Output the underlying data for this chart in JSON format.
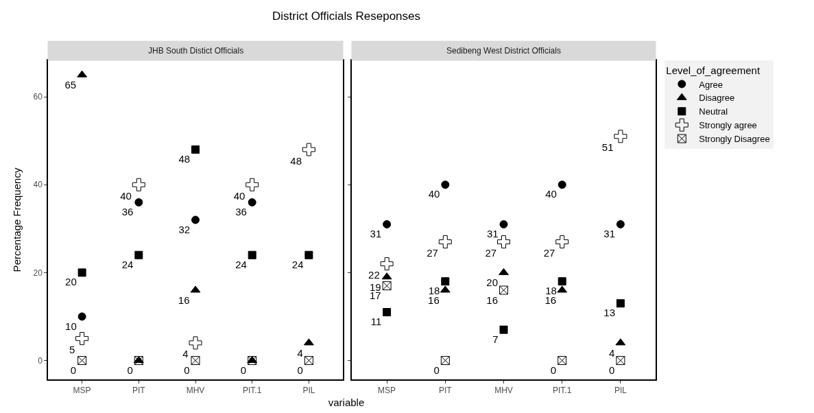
{
  "chart_data": [
    {
      "type": "scatter",
      "title": "District Officials Reseponses",
      "subtitle": "JHB South Distict Officials",
      "xlabel": "variable",
      "ylabel": "Percentage Frequency",
      "categories": [
        "MSP",
        "PIT",
        "MHV",
        "PIT.1",
        "PIL"
      ],
      "ylim": [
        -4.3,
        68.3
      ],
      "yticks": [
        0,
        20,
        40,
        60
      ],
      "grid": false,
      "data_labels": true,
      "series": [
        {
          "color": "#000000",
          "marker": "circle",
          "values": [
            10,
            36,
            32,
            36,
            null
          ]
        },
        {
          "color": "#000000",
          "marker": "triangle",
          "values": [
            65,
            0,
            16,
            0,
            4
          ]
        },
        {
          "color": "#000000",
          "marker": "square",
          "values": [
            20,
            24,
            48,
            24,
            24
          ]
        },
        {
          "color": "#000000",
          "marker": "cross",
          "values": [
            5,
            40,
            4,
            40,
            48
          ]
        },
        {
          "color": "#000000",
          "values": [
            0,
            0,
            0,
            0,
            0
          ],
          "value_labels": [
            "0",
            null,
            "0",
            null,
            "0"
          ]
        }
      ]
    },
    {
      "type": "scatter",
      "subtitle": "Sedibeng West District Officials",
      "categories": [
        "MSP",
        "PIT",
        "MHV",
        "PIT.1",
        "PIL"
      ],
      "ylim": [
        -4.3,
        68.3
      ],
      "yticks": [
        0,
        20,
        40,
        60
      ],
      "tick_labels": "x",
      "grid": false,
      "data_labels": true,
      "legend": "right",
      "legend_title": "Level_of_agreement",
      "series": [
        {
          "name": "Agree",
          "color": "#000000",
          "marker": "circle",
          "values": [
            31,
            40,
            31,
            40,
            31
          ]
        },
        {
          "name": "Disagree",
          "color": "#000000",
          "marker": "triangle",
          "values": [
            19,
            16,
            20,
            16,
            4
          ]
        },
        {
          "name": "Neutral",
          "color": "#000000",
          "marker": "square",
          "values": [
            11,
            18,
            7,
            18,
            13
          ]
        },
        {
          "name": "Strongly agree",
          "color": "#000000",
          "marker": "cross",
          "values": [
            22,
            27,
            27,
            27,
            51
          ]
        },
        {
          "name": "Strongly Disagree",
          "color": "#000000",
          "values": [
            17,
            0,
            16,
            0,
            0
          ]
        }
      ]
    }
  ]
}
